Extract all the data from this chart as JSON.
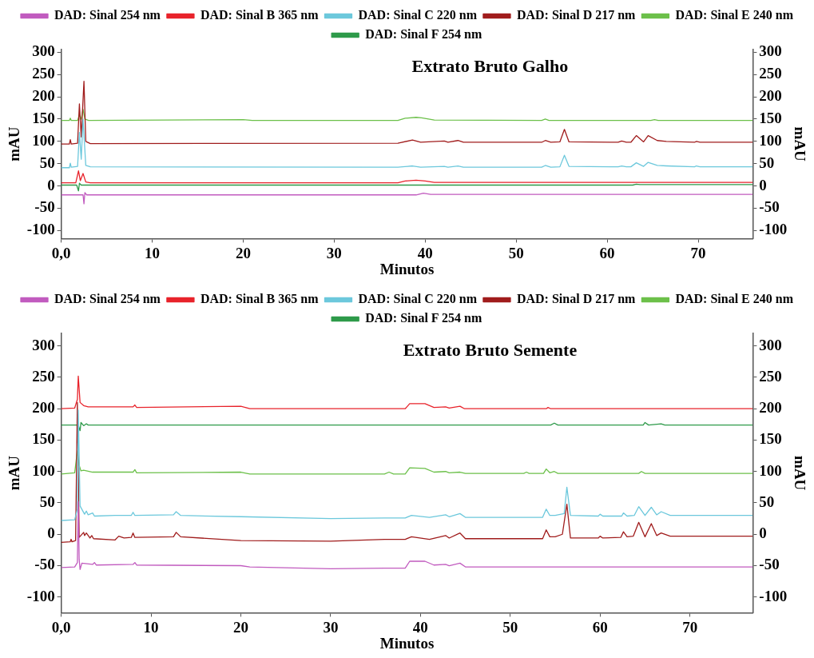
{
  "chart_data": [
    {
      "type": "line",
      "title": "Extrato Bruto Galho",
      "xlabel": "Minutos",
      "ylabel": "mAU",
      "y2label": "mAU",
      "xlim": [
        0,
        76
      ],
      "xticks": [
        {
          "value": 0,
          "label": "0,0"
        },
        10,
        20,
        30,
        40,
        50,
        60,
        70
      ],
      "ylim": [
        -118,
        306
      ],
      "yticks": [
        -100,
        -50,
        0,
        50,
        100,
        150,
        200,
        250,
        300
      ],
      "y2lim": [
        -118,
        306
      ],
      "y2ticks": [
        -100,
        -50,
        0,
        50,
        100,
        150,
        200,
        250,
        300
      ],
      "grid": false,
      "legend": "top",
      "marker": "none",
      "line_style": "solid",
      "series": [
        {
          "name": "DAD: Sinal 254 nm",
          "color": "#c15bbf",
          "x": [
            0,
            2.4,
            2.5,
            2.6,
            2.8,
            39,
            39.8,
            40.6,
            76
          ],
          "values": [
            -20,
            -20,
            -40,
            -15,
            -20,
            -20,
            -16,
            -19,
            -19
          ]
        },
        {
          "name": "DAD: Sinal B 365 nm",
          "color": "#e8232b",
          "x": [
            0,
            1.6,
            1.9,
            2.1,
            2.4,
            2.7,
            3.2,
            37,
            37.8,
            39,
            40,
            41,
            76
          ],
          "values": [
            7,
            7,
            34,
            12,
            28,
            9,
            7,
            7,
            11,
            13,
            11,
            8,
            8
          ]
        },
        {
          "name": "DAD: Sinal C 220 nm",
          "color": "#6cc8dc",
          "x": [
            0,
            0.9,
            1.0,
            1.1,
            1.8,
            2.0,
            2.2,
            2.4,
            2.7,
            3.2,
            37,
            38.6,
            39.5,
            42.1,
            42.5,
            43.6,
            44.2,
            52.8,
            53.2,
            53.8,
            54.8,
            55.3,
            55.8,
            61.2,
            61.6,
            62.1,
            62.6,
            63.2,
            64,
            64.5,
            65.5,
            66.5,
            69.6,
            69.8,
            70.2,
            76
          ],
          "values": [
            41,
            41,
            51,
            42,
            44,
            120,
            60,
            150,
            46,
            43,
            42,
            45,
            42,
            44,
            42,
            45,
            42,
            42,
            46,
            42,
            43,
            69,
            44,
            43,
            45,
            43,
            43,
            52,
            44,
            53,
            46,
            45,
            43,
            45,
            43,
            43
          ]
        },
        {
          "name": "DAD: Sinal D 217 nm",
          "color": "#a01c1c",
          "x": [
            0,
            0.9,
            1.0,
            1.1,
            1.8,
            2.0,
            2.2,
            2.5,
            2.7,
            3.2,
            37,
            38.6,
            39.5,
            42.1,
            42.5,
            43.6,
            44.2,
            52.8,
            53.2,
            53.8,
            54.8,
            55.3,
            55.8,
            61.2,
            61.6,
            62.1,
            62.6,
            63.2,
            64,
            64.5,
            65.5,
            66.5,
            69.6,
            69.8,
            70.2,
            76
          ],
          "values": [
            94,
            94,
            104,
            94,
            96,
            184,
            110,
            235,
            100,
            95,
            96,
            103,
            98,
            101,
            98,
            102,
            98,
            98,
            102,
            98,
            99,
            127,
            99,
            98,
            101,
            98,
            98,
            113,
            99,
            113,
            102,
            100,
            98,
            100,
            98,
            98
          ]
        },
        {
          "name": "DAD: Sinal E 240 nm",
          "color": "#6cc04a",
          "x": [
            0,
            0.9,
            1.0,
            1.1,
            1.8,
            2.0,
            2.2,
            2.4,
            2.6,
            3,
            20,
            21,
            37,
            37.8,
            39,
            39.6,
            41,
            52.8,
            53.2,
            53.6,
            64.8,
            65.2,
            65.6,
            76
          ],
          "values": [
            147,
            147,
            152,
            147,
            147,
            160,
            150,
            172,
            150,
            147,
            149,
            147,
            147,
            152,
            154,
            153,
            148,
            147,
            150,
            147,
            147,
            149,
            147,
            147
          ]
        },
        {
          "name": "DAD: Sinal F 254 nm",
          "color": "#2e9a4a",
          "x": [
            0,
            1.7,
            1.9,
            2.0,
            2.2,
            62.8,
            63.2,
            63.6,
            76
          ],
          "values": [
            2,
            2,
            -11,
            6,
            2,
            2,
            4,
            3,
            3
          ]
        }
      ]
    },
    {
      "type": "line",
      "title": "Extrato Bruto Semente",
      "xlabel": "Minutos",
      "ylabel": "mAU",
      "y2label": "mAU",
      "xlim": [
        0,
        77
      ],
      "xticks": [
        {
          "value": 0,
          "label": "0,0"
        },
        10,
        20,
        30,
        40,
        50,
        60,
        70
      ],
      "ylim": [
        -125,
        320
      ],
      "yticks": [
        -100,
        -50,
        0,
        50,
        100,
        150,
        200,
        250,
        300
      ],
      "y2lim": [
        -125,
        320
      ],
      "y2ticks": [
        -100,
        -50,
        0,
        50,
        100,
        150,
        200,
        250,
        300
      ],
      "grid": false,
      "legend": "top",
      "marker": "none",
      "line_style": "solid",
      "series": [
        {
          "name": "DAD: Sinal 254 nm",
          "color": "#c15bbf",
          "x": [
            0,
            1.5,
            1.8,
            1.9,
            2.0,
            2.1,
            2.3,
            3.5,
            3.7,
            3.9,
            8,
            8.2,
            8.4,
            20,
            21,
            30,
            36,
            38.3,
            38.8,
            40.5,
            41.5,
            42.8,
            43.2,
            44.4,
            45,
            77
          ],
          "values": [
            -53,
            -52,
            -45,
            52,
            -40,
            -56,
            -46,
            -48,
            -45,
            -49,
            -48,
            -45,
            -49,
            -50,
            -52,
            -55,
            -54,
            -54,
            -43,
            -43,
            -49,
            -48,
            -50,
            -46,
            -52,
            -52
          ]
        },
        {
          "name": "DAD: Sinal B 365 nm",
          "color": "#e8232b",
          "x": [
            0,
            1.5,
            1.8,
            1.9,
            2.1,
            2.5,
            3,
            8,
            8.2,
            8.4,
            20,
            21,
            37,
            38.3,
            38.8,
            40.5,
            41.5,
            42.8,
            43.2,
            44.4,
            44.9,
            54,
            54.2,
            54.5,
            77
          ],
          "values": [
            200,
            201,
            215,
            252,
            210,
            205,
            203,
            203,
            206,
            202,
            204,
            200,
            200,
            200,
            208,
            208,
            202,
            203,
            201,
            204,
            200,
            200,
            202,
            200,
            200
          ]
        },
        {
          "name": "DAD: Sinal C 220 nm",
          "color": "#6cc8dc",
          "x": [
            0,
            1.5,
            1.8,
            1.9,
            2.1,
            2.6,
            2.8,
            3.0,
            3.5,
            3.7,
            6,
            7.8,
            8,
            8.2,
            12.5,
            12.8,
            13.3,
            20,
            30,
            36,
            38.3,
            39,
            41,
            42.8,
            43.2,
            44.4,
            45,
            53.6,
            54,
            54.4,
            55,
            56,
            56.3,
            56.7,
            59.8,
            60,
            60.3,
            62.4,
            62.6,
            63,
            63.8,
            64.3,
            65,
            65.7,
            66.3,
            66.8,
            67.8,
            77
          ],
          "values": [
            22,
            23,
            40,
            198,
            45,
            32,
            37,
            31,
            34,
            29,
            30,
            30,
            35,
            30,
            31,
            36,
            30,
            28,
            25,
            26,
            26,
            30,
            27,
            31,
            28,
            33,
            27,
            27,
            40,
            30,
            30,
            33,
            75,
            30,
            29,
            32,
            29,
            29,
            34,
            29,
            30,
            44,
            30,
            43,
            31,
            36,
            30,
            30
          ]
        },
        {
          "name": "DAD: Sinal D 217 nm",
          "color": "#a01c1c",
          "x": [
            0,
            1,
            1.1,
            1.2,
            1.6,
            1.8,
            2.0,
            2.5,
            2.6,
            2.8,
            3.2,
            3.4,
            3.6,
            6,
            6.4,
            7.0,
            7.8,
            8,
            8.2,
            12.5,
            12.8,
            13.3,
            20,
            30,
            36,
            38.3,
            39,
            41,
            42.8,
            43.2,
            44.4,
            45,
            53.6,
            54,
            54.4,
            55,
            55.8,
            56.3,
            56.7,
            59.8,
            60,
            60.3,
            62.3,
            62.6,
            63,
            63.7,
            64.3,
            65,
            65.7,
            66.3,
            66.8,
            67.8,
            77
          ],
          "values": [
            -13,
            -12,
            -8,
            -12,
            -10,
            210,
            -5,
            3,
            -2,
            2,
            -6,
            -2,
            -7,
            -9,
            -3,
            -6,
            -5,
            2,
            -5,
            -4,
            3,
            -4,
            -10,
            -11,
            -8,
            -8,
            -4,
            -8,
            -2,
            -6,
            2,
            -7,
            -7,
            7,
            -4,
            -4,
            0,
            48,
            -6,
            -6,
            -3,
            -6,
            -5,
            4,
            -4,
            -3,
            19,
            -4,
            17,
            -2,
            2,
            -3,
            -3
          ]
        },
        {
          "name": "DAD: Sinal E 240 nm",
          "color": "#6cc04a",
          "x": [
            0,
            1.5,
            1.8,
            2.0,
            2.2,
            2.5,
            3.5,
            8,
            8.2,
            8.4,
            20,
            21,
            36,
            36.5,
            37,
            38.3,
            38.8,
            40.5,
            41.5,
            42.8,
            43.2,
            44.4,
            45,
            51.5,
            51.8,
            52.1,
            53.7,
            54,
            54.4,
            54.9,
            55.3,
            64.3,
            64.6,
            65,
            77
          ],
          "values": [
            96,
            98,
            133,
            110,
            101,
            102,
            99,
            99,
            103,
            98,
            99,
            96,
            96,
            99,
            96,
            96,
            106,
            105,
            99,
            100,
            98,
            99,
            97,
            97,
            99,
            97,
            97,
            104,
            98,
            100,
            97,
            97,
            100,
            97,
            97
          ]
        },
        {
          "name": "DAD: Sinal F 254 nm",
          "color": "#2e9a4a",
          "x": [
            0,
            1.9,
            2.1,
            2.2,
            2.5,
            2.8,
            3,
            54.5,
            54.9,
            55.3,
            64.8,
            65,
            65.4,
            66.8,
            67.2,
            77
          ],
          "values": [
            174,
            174,
            165,
            178,
            173,
            176,
            174,
            174,
            177,
            174,
            174,
            178,
            174,
            176,
            174,
            174
          ]
        }
      ]
    }
  ]
}
